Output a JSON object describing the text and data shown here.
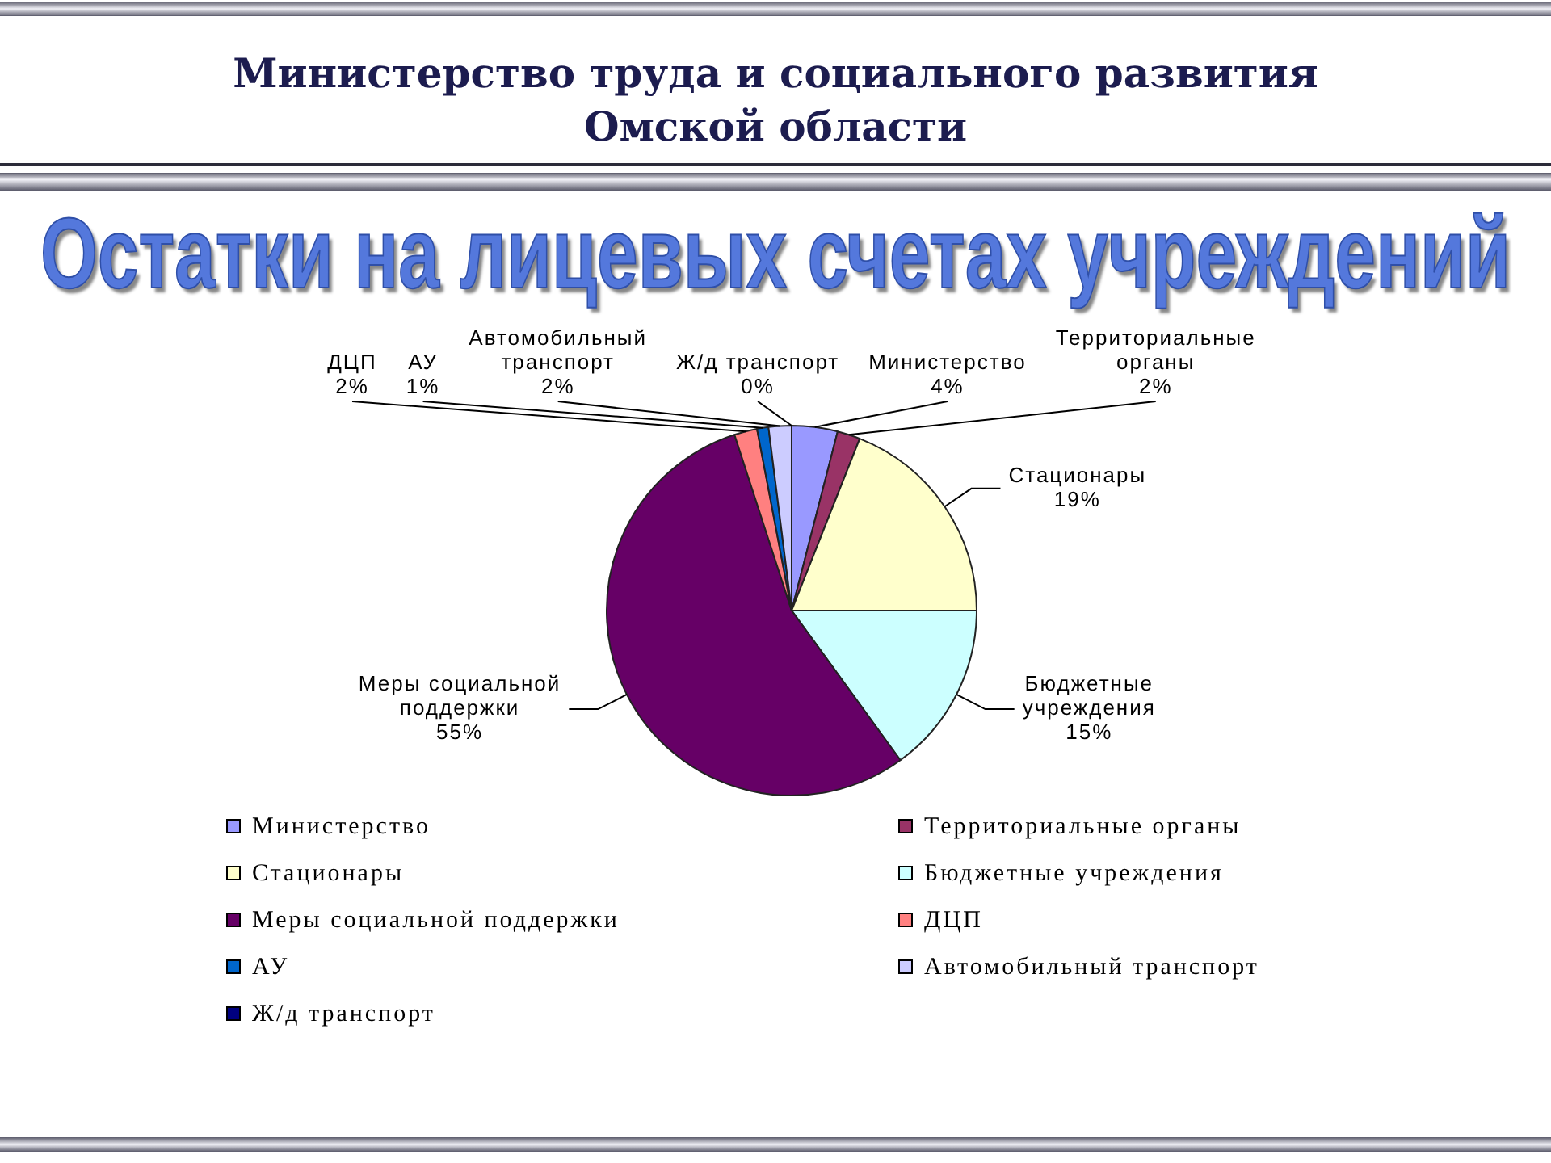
{
  "chart_data": {
    "type": "pie",
    "title": "Остатки на лицевых счетах учреждений",
    "annotations": [
      "Министерство труда и социального развития Омской области"
    ],
    "categories": [
      "Министерство",
      "Территориальные органы",
      "Стационары",
      "Бюджетные учреждения",
      "Меры социальной поддержки",
      "ДЦП",
      "АУ",
      "Автомобильный транспорт",
      "Ж/д транспорт"
    ],
    "values": [
      4,
      2,
      19,
      15,
      55,
      2,
      1,
      2,
      0
    ],
    "value_labels": [
      "4%",
      "2%",
      "19%",
      "15%",
      "55%",
      "2%",
      "1%",
      "2%",
      "0%"
    ],
    "colors": [
      "#9999ff",
      "#993366",
      "#ffffcc",
      "#ccffff",
      "#660066",
      "#ff8080",
      "#0066cc",
      "#ccccff",
      "#000080"
    ],
    "legend": "bottom"
  }
}
